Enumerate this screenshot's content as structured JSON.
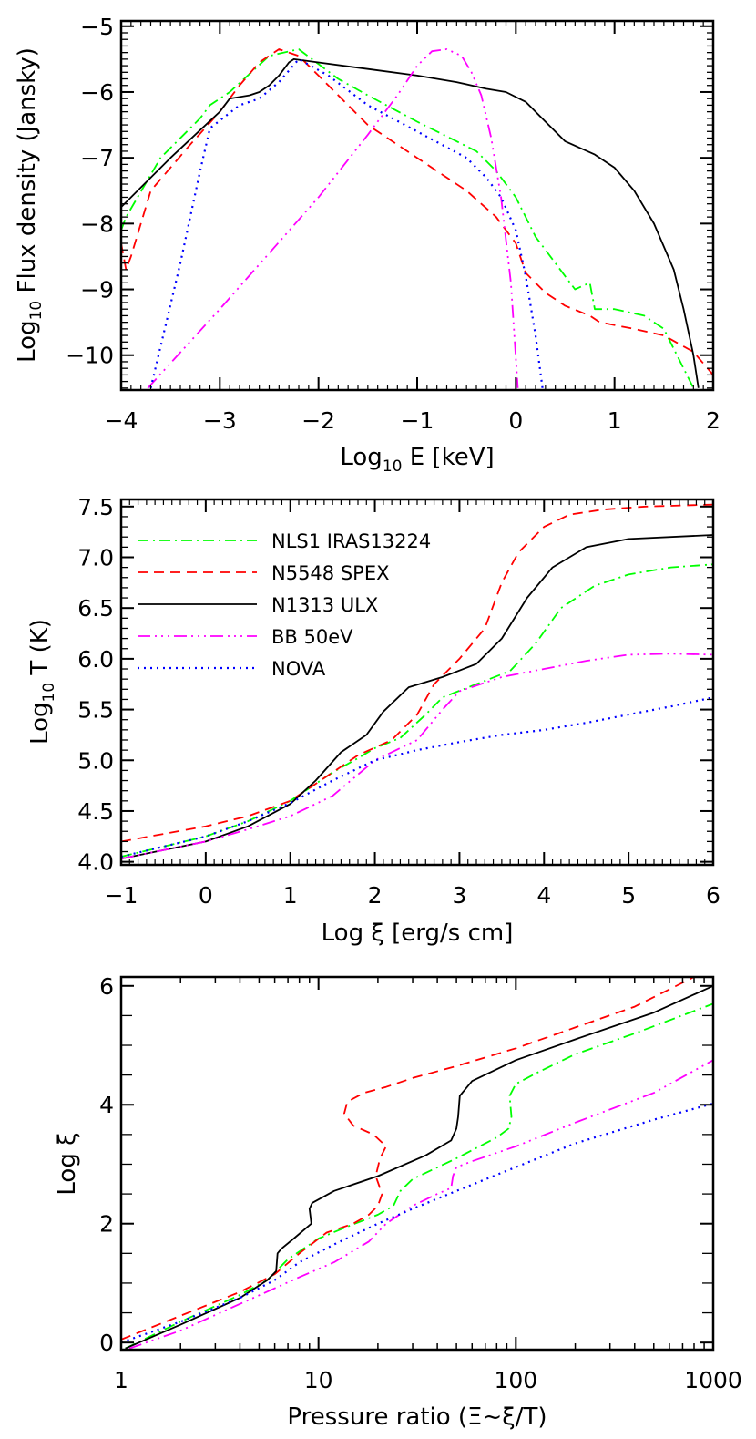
{
  "figure": {
    "colors": {
      "NLS1 IRAS13224": "#00ff00",
      "N5548 SPEX": "#ff0000",
      "N1313 ULX": "#000000",
      "BB 50eV": "#ff00ff",
      "NOVA": "#0000ff"
    },
    "legend": {
      "items": [
        {
          "label": "NLS1 IRAS13224",
          "color": "#00ff00",
          "style": "dash-dot"
        },
        {
          "label": "N5548 SPEX",
          "color": "#ff0000",
          "style": "dashed"
        },
        {
          "label": "N1313 ULX",
          "color": "#000000",
          "style": "solid"
        },
        {
          "label": "BB 50eV",
          "color": "#ff00ff",
          "style": "dash-dot-dot-dot"
        },
        {
          "label": "NOVA",
          "color": "#0000ff",
          "style": "dotted"
        }
      ]
    }
  },
  "chart_data": [
    {
      "type": "line",
      "title": "",
      "xlabel_main": "Log",
      "xlabel_sub": "10",
      "xlabel_rest": " E [keV]",
      "ylabel_main": "Log",
      "ylabel_sub": "10",
      "ylabel_rest": " Flux density (Jansky)",
      "xlim": [
        -4,
        2
      ],
      "ylim": [
        -10.53,
        -4.92
      ],
      "xticks": [
        -4,
        -3,
        -2,
        -1,
        0,
        1,
        2
      ],
      "xtick_labels": [
        "−4",
        "−3",
        "−2",
        "−1",
        "0",
        "1",
        "2"
      ],
      "yticks": [
        -5,
        -6,
        -7,
        -8,
        -9,
        -10
      ],
      "ytick_labels": [
        "−5",
        "−6",
        "−7",
        "−8",
        "−9",
        "−10"
      ],
      "grid": false,
      "series": [
        {
          "name": "NLS1 IRAS13224",
          "x": [
            -4.0,
            -3.95,
            -3.6,
            -3.2,
            -3.1,
            -2.9,
            -2.5,
            -2.2,
            -1.8,
            -1.5,
            -1.0,
            -0.6,
            -0.4,
            -0.2,
            0.0,
            0.2,
            0.4,
            0.6,
            0.75,
            0.8,
            1.0,
            1.3,
            1.5,
            1.8
          ],
          "y": [
            -8.1,
            -7.9,
            -7.0,
            -6.4,
            -6.2,
            -6.0,
            -5.45,
            -5.35,
            -5.8,
            -6.05,
            -6.45,
            -6.75,
            -6.9,
            -7.2,
            -7.6,
            -8.2,
            -8.6,
            -9.0,
            -8.9,
            -9.3,
            -9.3,
            -9.4,
            -9.6,
            -10.5
          ]
        },
        {
          "name": "N5548 SPEX",
          "x": [
            -4.0,
            -3.95,
            -3.9,
            -3.7,
            -3.3,
            -3.0,
            -2.8,
            -2.6,
            -2.4,
            -2.2,
            -1.9,
            -1.5,
            -1.0,
            -0.5,
            -0.2,
            0.0,
            0.1,
            0.3,
            0.5,
            0.75,
            0.85,
            1.2,
            1.5,
            1.8,
            2.0
          ],
          "y": [
            -8.3,
            -8.7,
            -8.5,
            -7.5,
            -6.8,
            -6.3,
            -5.9,
            -5.55,
            -5.35,
            -5.45,
            -5.9,
            -6.5,
            -7.0,
            -7.5,
            -7.9,
            -8.3,
            -8.75,
            -9.05,
            -9.25,
            -9.4,
            -9.5,
            -9.6,
            -9.7,
            -9.95,
            -10.3
          ]
        },
        {
          "name": "N1313 ULX",
          "x": [
            -4.0,
            -3.5,
            -3.0,
            -2.9,
            -2.7,
            -2.6,
            -2.5,
            -2.4,
            -2.3,
            -2.25,
            -2.0,
            -1.5,
            -1.0,
            -0.6,
            -0.3,
            -0.1,
            0.1,
            0.3,
            0.5,
            0.8,
            1.0,
            1.2,
            1.4,
            1.6,
            1.7,
            1.8,
            1.85
          ],
          "y": [
            -7.75,
            -7.0,
            -6.3,
            -6.1,
            -6.05,
            -6.0,
            -5.9,
            -5.75,
            -5.55,
            -5.5,
            -5.55,
            -5.65,
            -5.75,
            -5.85,
            -5.95,
            -6.0,
            -6.15,
            -6.45,
            -6.75,
            -6.95,
            -7.15,
            -7.5,
            -8.0,
            -8.7,
            -9.3,
            -10.0,
            -10.5
          ]
        },
        {
          "name": "BB 50eV",
          "x": [
            -3.73,
            -3.0,
            -2.0,
            -1.5,
            -1.2,
            -1.0,
            -0.85,
            -0.7,
            -0.55,
            -0.45,
            -0.35,
            -0.25,
            -0.15,
            -0.05,
            0.02
          ],
          "y": [
            -10.5,
            -9.3,
            -7.6,
            -6.65,
            -6.05,
            -5.6,
            -5.38,
            -5.35,
            -5.45,
            -5.7,
            -6.05,
            -6.7,
            -7.6,
            -8.9,
            -10.5
          ]
        },
        {
          "name": "NOVA",
          "x": [
            -3.7,
            -3.4,
            -3.2,
            -3.1,
            -2.8,
            -2.6,
            -2.4,
            -2.2,
            -1.9,
            -1.5,
            -1.0,
            -0.5,
            -0.3,
            -0.15,
            0.0,
            0.1,
            0.2,
            0.27
          ],
          "y": [
            -10.5,
            -8.6,
            -7.2,
            -6.55,
            -6.2,
            -6.1,
            -5.85,
            -5.5,
            -5.75,
            -6.2,
            -6.6,
            -7.0,
            -7.3,
            -7.6,
            -8.1,
            -8.8,
            -9.7,
            -10.5
          ]
        }
      ]
    },
    {
      "type": "line",
      "xlabel": "Log ξ [erg/s cm]",
      "ylabel_main": "Log",
      "ylabel_sub": "10",
      "ylabel_rest": " T (K)",
      "xlim": [
        -1,
        6
      ],
      "ylim": [
        3.97,
        7.57
      ],
      "xticks": [
        -1,
        0,
        1,
        2,
        3,
        4,
        5,
        6
      ],
      "xtick_labels": [
        "−1",
        "0",
        "1",
        "2",
        "3",
        "4",
        "5",
        "6"
      ],
      "yticks": [
        4.0,
        4.5,
        5.0,
        5.5,
        6.0,
        6.5,
        7.0,
        7.5
      ],
      "ytick_labels": [
        "4.0",
        "4.5",
        "5.0",
        "5.5",
        "6.0",
        "6.5",
        "7.0",
        "7.5"
      ],
      "legend_position": "upper left",
      "grid": false,
      "series": [
        {
          "name": "NLS1 IRAS13224",
          "x": [
            -1,
            0,
            0.5,
            1.0,
            1.5,
            1.8,
            2.0,
            2.3,
            2.6,
            2.8,
            3.2,
            3.6,
            3.9,
            4.2,
            4.6,
            5.0,
            5.5,
            6.0
          ],
          "y": [
            4.05,
            4.25,
            4.4,
            4.6,
            4.88,
            5.02,
            5.12,
            5.22,
            5.45,
            5.62,
            5.75,
            5.88,
            6.15,
            6.5,
            6.72,
            6.83,
            6.9,
            6.93
          ]
        },
        {
          "name": "N5548 SPEX",
          "x": [
            -1,
            0,
            0.5,
            1.0,
            1.5,
            1.8,
            2.2,
            2.5,
            2.7,
            3.0,
            3.3,
            3.5,
            3.7,
            4.0,
            4.3,
            4.7,
            5.2,
            6.0
          ],
          "y": [
            4.2,
            4.35,
            4.45,
            4.6,
            4.88,
            5.05,
            5.2,
            5.45,
            5.75,
            6.0,
            6.3,
            6.75,
            7.05,
            7.3,
            7.42,
            7.47,
            7.5,
            7.52
          ]
        },
        {
          "name": "N1313 ULX",
          "x": [
            -1,
            0,
            0.5,
            1.0,
            1.3,
            1.6,
            1.9,
            2.1,
            2.4,
            2.8,
            3.2,
            3.5,
            3.8,
            4.1,
            4.5,
            5.0,
            6.0
          ],
          "y": [
            4.03,
            4.2,
            4.35,
            4.57,
            4.8,
            5.08,
            5.25,
            5.48,
            5.72,
            5.82,
            5.95,
            6.2,
            6.6,
            6.9,
            7.1,
            7.18,
            7.22
          ]
        },
        {
          "name": "BB 50eV",
          "x": [
            -1,
            0,
            0.5,
            1.0,
            1.5,
            2.0,
            2.5,
            2.8,
            3.0,
            3.5,
            4.0,
            4.5,
            5.0,
            5.5,
            6.0
          ],
          "y": [
            4.03,
            4.2,
            4.32,
            4.45,
            4.65,
            5.0,
            5.2,
            5.5,
            5.68,
            5.82,
            5.9,
            5.98,
            6.04,
            6.05,
            6.04
          ]
        },
        {
          "name": "NOVA",
          "x": [
            -1,
            0,
            0.5,
            1.0,
            1.5,
            2.0,
            2.5,
            3.0,
            3.5,
            4.0,
            4.5,
            5.0,
            5.5,
            6.0
          ],
          "y": [
            4.05,
            4.25,
            4.4,
            4.58,
            4.8,
            5.0,
            5.1,
            5.18,
            5.25,
            5.3,
            5.37,
            5.45,
            5.53,
            5.62
          ]
        }
      ]
    },
    {
      "type": "line",
      "xlabel": "Pressure ratio (Ξ~ξ/T)",
      "ylabel": "Log ξ",
      "xscale": "log",
      "xlim": [
        1,
        1000
      ],
      "ylim": [
        -0.12,
        6.15
      ],
      "xticks": [
        1,
        10,
        100,
        1000
      ],
      "xtick_labels": [
        "1",
        "10",
        "100",
        "1000"
      ],
      "yticks": [
        0,
        2,
        4,
        6
      ],
      "ytick_labels": [
        "0",
        "2",
        "4",
        "6"
      ],
      "grid": false,
      "series": [
        {
          "name": "NLS1 IRAS13224",
          "x": [
            1.05,
            2,
            4,
            5.5,
            7,
            10,
            14,
            20,
            24,
            26,
            30,
            50,
            80,
            92,
            95,
            93,
            100,
            130,
            200,
            400,
            1000
          ],
          "y": [
            -0.1,
            0.35,
            0.8,
            1.05,
            1.4,
            1.75,
            1.95,
            2.15,
            2.3,
            2.55,
            2.75,
            3.1,
            3.45,
            3.6,
            3.8,
            4.15,
            4.35,
            4.55,
            4.85,
            5.2,
            5.7
          ]
        },
        {
          "name": "N5548 SPEX",
          "x": [
            1,
            2,
            4,
            6,
            8,
            11,
            15,
            18,
            20,
            21,
            19.5,
            20.5,
            22,
            19,
            15,
            13.5,
            14,
            17,
            22,
            30,
            50,
            100,
            200,
            400,
            800
          ],
          "y": [
            0.05,
            0.45,
            0.85,
            1.15,
            1.5,
            1.85,
            2.0,
            2.15,
            2.3,
            2.5,
            2.8,
            3.1,
            3.3,
            3.5,
            3.65,
            3.85,
            4.05,
            4.2,
            4.3,
            4.45,
            4.65,
            4.95,
            5.3,
            5.65,
            6.15
          ]
        },
        {
          "name": "N1313 ULX",
          "x": [
            1.05,
            2,
            4,
            5.5,
            6.1,
            6.2,
            6.5,
            7.5,
            9.2,
            9.0,
            9.3,
            12,
            20,
            35,
            47,
            50,
            51,
            52,
            60,
            100,
            200,
            500,
            1000
          ],
          "y": [
            -0.1,
            0.3,
            0.75,
            1.05,
            1.2,
            1.5,
            1.58,
            1.75,
            2.0,
            2.25,
            2.35,
            2.55,
            2.8,
            3.15,
            3.4,
            3.6,
            3.8,
            4.15,
            4.4,
            4.75,
            5.1,
            5.55,
            6.0
          ]
        },
        {
          "name": "BB 50eV",
          "x": [
            1.1,
            2,
            4,
            8,
            12,
            18,
            22,
            30,
            40,
            47,
            48,
            50,
            60,
            100,
            200,
            500,
            1000
          ],
          "y": [
            -0.1,
            0.2,
            0.65,
            1.1,
            1.35,
            1.7,
            2.0,
            2.3,
            2.5,
            2.6,
            2.8,
            2.95,
            3.05,
            3.3,
            3.7,
            4.2,
            4.75
          ]
        },
        {
          "name": "NOVA",
          "x": [
            1,
            2,
            4,
            6,
            8,
            12,
            20,
            30,
            50,
            100,
            200,
            500,
            1000
          ],
          "y": [
            0.0,
            0.35,
            0.75,
            1.05,
            1.35,
            1.65,
            2.0,
            2.25,
            2.55,
            2.95,
            3.35,
            3.75,
            4.02
          ]
        }
      ]
    }
  ]
}
